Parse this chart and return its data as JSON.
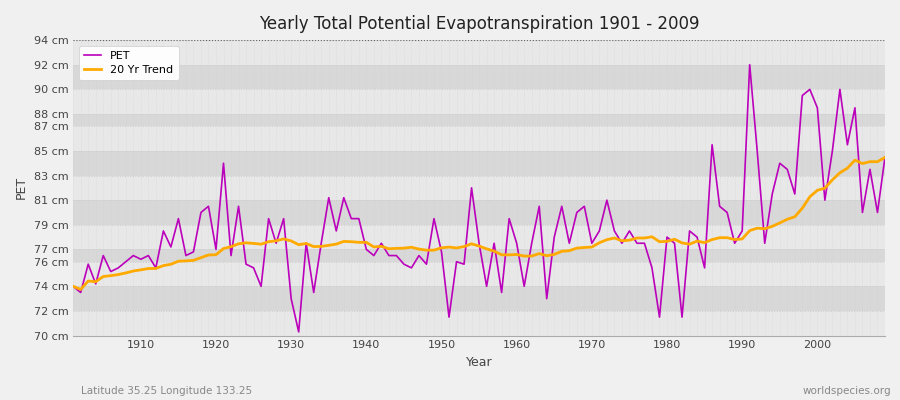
{
  "title": "Yearly Total Potential Evapotranspiration 1901 - 2009",
  "ylabel": "PET",
  "xlabel": "Year",
  "subtitle_left": "Latitude 35.25 Longitude 133.25",
  "subtitle_right": "worldspecies.org",
  "pet_color": "#bb00bb",
  "trend_color": "#ffaa00",
  "bg_color": "#f0f0f0",
  "plot_bg_color": "#e8e8e8",
  "alt_band_color": "#d8d8d8",
  "ylim_min": 70,
  "ylim_max": 94,
  "xlim_min": 1901,
  "xlim_max": 2009,
  "yticks": [
    70,
    72,
    74,
    76,
    77,
    79,
    81,
    83,
    85,
    87,
    88,
    90,
    92,
    94
  ],
  "pet_values": [
    74.0,
    73.5,
    75.8,
    74.2,
    76.5,
    75.2,
    75.5,
    76.0,
    76.5,
    76.2,
    76.5,
    75.5,
    78.5,
    77.2,
    79.5,
    76.5,
    76.8,
    80.0,
    80.5,
    77.0,
    84.0,
    76.5,
    80.5,
    75.8,
    75.5,
    74.0,
    79.5,
    77.5,
    79.5,
    73.0,
    70.3,
    77.5,
    73.5,
    77.5,
    81.2,
    78.5,
    81.2,
    79.5,
    79.5,
    77.0,
    76.5,
    77.5,
    76.5,
    76.5,
    75.8,
    75.5,
    76.5,
    75.8,
    79.5,
    76.8,
    71.5,
    76.0,
    75.8,
    82.0,
    77.5,
    74.0,
    77.5,
    73.5,
    79.5,
    77.5,
    74.0,
    77.5,
    80.5,
    73.0,
    78.0,
    80.5,
    77.5,
    80.0,
    80.5,
    77.5,
    78.5,
    81.0,
    78.5,
    77.5,
    78.5,
    77.5,
    77.5,
    75.5,
    71.5,
    78.0,
    77.5,
    71.5,
    78.5,
    78.0,
    75.5,
    85.5,
    80.5,
    80.0,
    77.5,
    78.5,
    92.0,
    85.0,
    77.5,
    81.5,
    84.0,
    83.5,
    81.5,
    89.5,
    90.0,
    88.5,
    81.0,
    85.0,
    90.0,
    85.5,
    88.5,
    80.0,
    83.5,
    80.0,
    84.5
  ]
}
